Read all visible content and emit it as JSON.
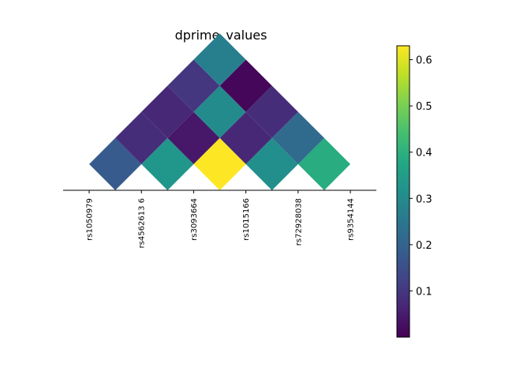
{
  "chart_data": {
    "type": "heatmap",
    "layout": "triangular-ld",
    "title": "dprime_values",
    "snps": [
      "rs1050979",
      "rs4562613 6",
      "rs3093664",
      "rs1015166",
      "rs72928038",
      "rs9354144"
    ],
    "pairs": [
      {
        "i": 0,
        "j": 1,
        "value": 0.18
      },
      {
        "i": 1,
        "j": 2,
        "value": 0.33
      },
      {
        "i": 2,
        "j": 3,
        "value": 0.63
      },
      {
        "i": 3,
        "j": 4,
        "value": 0.31
      },
      {
        "i": 4,
        "j": 5,
        "value": 0.39
      },
      {
        "i": 0,
        "j": 2,
        "value": 0.08
      },
      {
        "i": 1,
        "j": 3,
        "value": 0.04
      },
      {
        "i": 2,
        "j": 4,
        "value": 0.07
      },
      {
        "i": 3,
        "j": 5,
        "value": 0.22
      },
      {
        "i": 0,
        "j": 3,
        "value": 0.07
      },
      {
        "i": 1,
        "j": 4,
        "value": 0.3
      },
      {
        "i": 2,
        "j": 5,
        "value": 0.08
      },
      {
        "i": 0,
        "j": 4,
        "value": 0.1
      },
      {
        "i": 1,
        "j": 5,
        "value": 0.01
      },
      {
        "i": 0,
        "j": 5,
        "value": 0.27
      }
    ],
    "colorbar": {
      "colormap": "viridis",
      "range": [
        0.0,
        0.63
      ],
      "ticks": [
        0.1,
        0.2,
        0.3,
        0.4,
        0.5,
        0.6
      ],
      "tick_labels": [
        "0.1",
        "0.2",
        "0.3",
        "0.4",
        "0.5",
        "0.6"
      ]
    }
  }
}
